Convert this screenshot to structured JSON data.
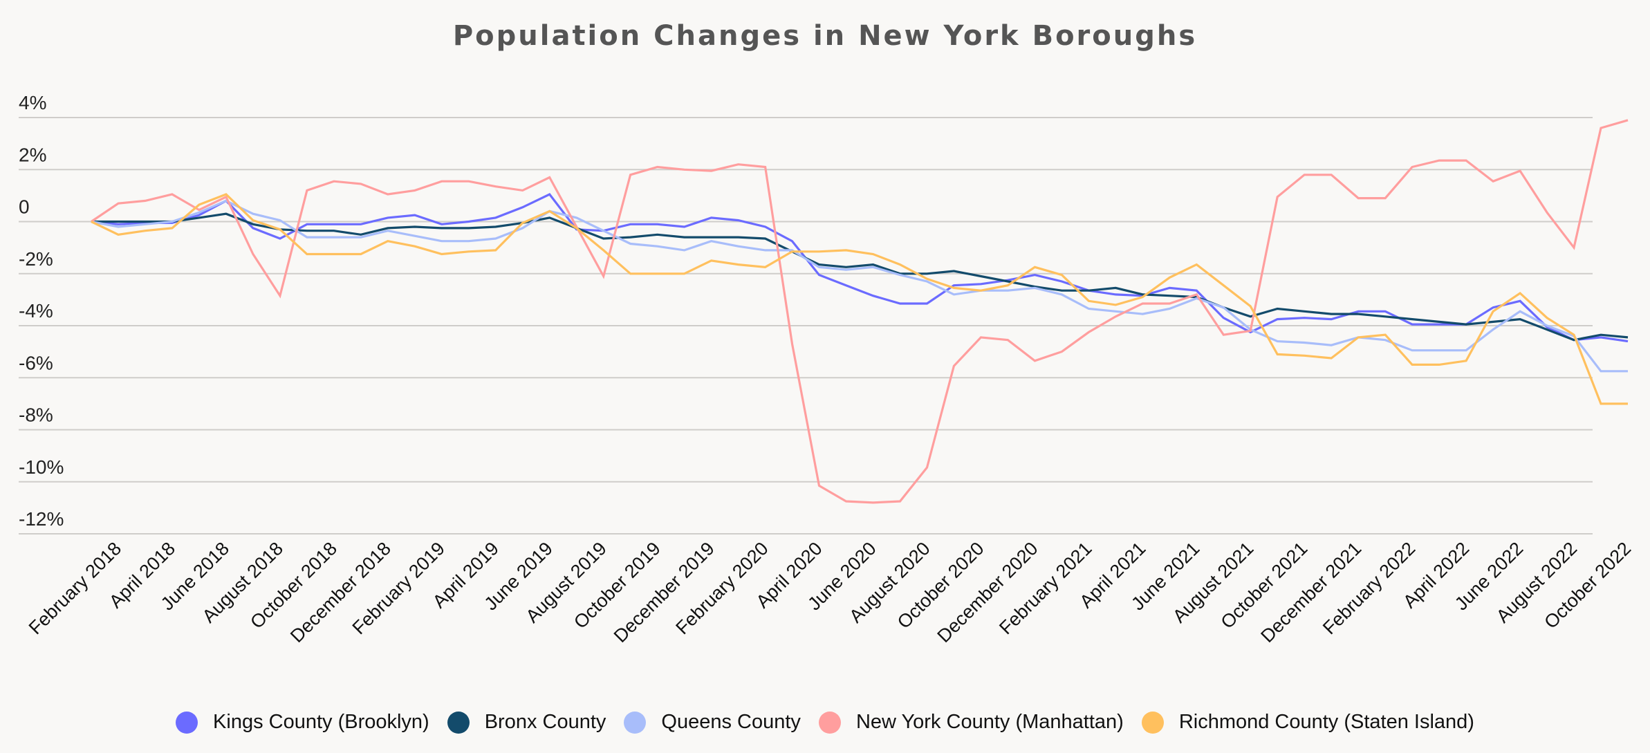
{
  "chart_data": {
    "type": "line",
    "title": "Population Changes in New York Boroughs",
    "xlabel": "",
    "ylabel": "",
    "x": [
      "2018-01",
      "2018-02",
      "2018-03",
      "2018-04",
      "2018-05",
      "2018-06",
      "2018-07",
      "2018-08",
      "2018-09",
      "2018-10",
      "2018-11",
      "2018-12",
      "2019-01",
      "2019-02",
      "2019-03",
      "2019-04",
      "2019-05",
      "2019-06",
      "2019-07",
      "2019-08",
      "2019-09",
      "2019-10",
      "2019-11",
      "2019-12",
      "2020-01",
      "2020-02",
      "2020-03",
      "2020-04",
      "2020-05",
      "2020-06",
      "2020-07",
      "2020-08",
      "2020-09",
      "2020-10",
      "2020-11",
      "2020-12",
      "2021-01",
      "2021-02",
      "2021-03",
      "2021-04",
      "2021-05",
      "2021-06",
      "2021-07",
      "2021-08",
      "2021-09",
      "2021-10",
      "2021-11",
      "2021-12",
      "2022-01",
      "2022-02",
      "2022-03",
      "2022-04",
      "2022-05",
      "2022-06",
      "2022-07",
      "2022-08",
      "2022-09",
      "2022-10"
    ],
    "x_tick_labels": [
      "February 2018",
      "April 2018",
      "June 2018",
      "August 2018",
      "October 2018",
      "December 2018",
      "February 2019",
      "April 2019",
      "June 2019",
      "August 2019",
      "October 2019",
      "December 2019",
      "February 2020",
      "April 2020",
      "June 2020",
      "August 2020",
      "October 2020",
      "December 2020",
      "February 2021",
      "April 2021",
      "June 2021",
      "August 2021",
      "October 2021",
      "December 2021",
      "February 2022",
      "April 2022",
      "June 2022",
      "August 2022",
      "October 2022"
    ],
    "y_ticks": [
      4,
      2,
      0,
      -2,
      -4,
      -6,
      -8,
      -10,
      -12
    ],
    "y_tick_labels": [
      "4%",
      "2%",
      "0",
      "-2%",
      "-4%",
      "-6%",
      "-8%",
      "-10%",
      "-12%"
    ],
    "ylim": [
      -12,
      4
    ],
    "grid": "horizontal",
    "legend_position": "bottom",
    "series": [
      {
        "name": "Kings County (Brooklyn)",
        "color": "#6b6bff",
        "values": [
          0,
          -0.1,
          -0.05,
          -0.05,
          0.25,
          0.8,
          -0.25,
          -0.65,
          -0.1,
          -0.1,
          -0.1,
          0.15,
          0.25,
          -0.1,
          0,
          0.15,
          0.55,
          1.05,
          -0.3,
          -0.35,
          -0.1,
          -0.1,
          -0.2,
          0.15,
          0.05,
          -0.2,
          -0.75,
          -2.05,
          -2.45,
          -2.85,
          -3.15,
          -3.15,
          -2.45,
          -2.4,
          -2.25,
          -2.05,
          -2.3,
          -2.65,
          -2.8,
          -2.85,
          -2.55,
          -2.65,
          -3.7,
          -4.25,
          -3.75,
          -3.7,
          -3.75,
          -3.45,
          -3.45,
          -3.95,
          -3.95,
          -3.95,
          -3.3,
          -3.05,
          -4.05,
          -4.55,
          -4.45,
          -4.6
        ]
      },
      {
        "name": "Bronx County",
        "color": "#134b6b",
        "values": [
          0,
          0,
          0,
          0,
          0.15,
          0.3,
          -0.1,
          -0.3,
          -0.35,
          -0.35,
          -0.5,
          -0.25,
          -0.2,
          -0.25,
          -0.25,
          -0.2,
          -0.05,
          0.15,
          -0.25,
          -0.65,
          -0.6,
          -0.5,
          -0.6,
          -0.6,
          -0.6,
          -0.65,
          -1.15,
          -1.65,
          -1.75,
          -1.65,
          -2.0,
          -2.0,
          -1.9,
          -2.1,
          -2.3,
          -2.5,
          -2.65,
          -2.65,
          -2.55,
          -2.8,
          -2.85,
          -2.9,
          -3.3,
          -3.65,
          -3.35,
          -3.45,
          -3.55,
          -3.55,
          -3.65,
          -3.75,
          -3.85,
          -3.95,
          -3.85,
          -3.75,
          -4.15,
          -4.55,
          -4.35,
          -4.45
        ]
      },
      {
        "name": "Queens County",
        "color": "#a8bdfa",
        "values": [
          0,
          -0.2,
          -0.1,
          0,
          0.35,
          0.8,
          0.3,
          0.05,
          -0.6,
          -0.6,
          -0.6,
          -0.35,
          -0.55,
          -0.75,
          -0.75,
          -0.65,
          -0.25,
          0.4,
          0.15,
          -0.35,
          -0.85,
          -0.95,
          -1.1,
          -0.75,
          -0.95,
          -1.1,
          -1.1,
          -1.75,
          -1.85,
          -1.75,
          -2.05,
          -2.3,
          -2.8,
          -2.65,
          -2.65,
          -2.55,
          -2.8,
          -3.35,
          -3.45,
          -3.55,
          -3.35,
          -2.95,
          -3.3,
          -4.15,
          -4.6,
          -4.65,
          -4.75,
          -4.45,
          -4.55,
          -4.95,
          -4.95,
          -4.95,
          -4.15,
          -3.45,
          -4.0,
          -4.4,
          -5.75,
          -5.75
        ]
      },
      {
        "name": "New York County (Manhattan)",
        "color": "#ff9e9e",
        "values": [
          0,
          0.7,
          0.8,
          1.05,
          0.45,
          0.95,
          -1.25,
          -2.85,
          1.2,
          1.55,
          1.45,
          1.05,
          1.2,
          1.55,
          1.55,
          1.35,
          1.2,
          1.7,
          -0.2,
          -2.1,
          1.8,
          2.1,
          2.0,
          1.95,
          2.2,
          2.1,
          -4.7,
          -10.15,
          -10.75,
          -10.8,
          -10.75,
          -9.45,
          -5.55,
          -4.45,
          -4.55,
          -5.35,
          -5.0,
          -4.25,
          -3.65,
          -3.15,
          -3.15,
          -2.8,
          -4.35,
          -4.2,
          0.95,
          1.8,
          1.8,
          0.9,
          0.9,
          2.1,
          2.35,
          2.35,
          1.55,
          1.95,
          0.35,
          -1.0,
          3.6,
          3.9
        ]
      },
      {
        "name": "Richmond County (Staten Island)",
        "color": "#ffc05e",
        "values": [
          0,
          -0.5,
          -0.35,
          -0.25,
          0.65,
          1.05,
          0.05,
          -0.3,
          -1.25,
          -1.25,
          -1.25,
          -0.75,
          -0.95,
          -1.25,
          -1.15,
          -1.1,
          -0.05,
          0.4,
          -0.25,
          -1.1,
          -2.0,
          -2.0,
          -2.0,
          -1.5,
          -1.65,
          -1.75,
          -1.15,
          -1.15,
          -1.1,
          -1.25,
          -1.65,
          -2.2,
          -2.55,
          -2.65,
          -2.45,
          -1.75,
          -2.05,
          -3.05,
          -3.2,
          -2.9,
          -2.15,
          -1.65,
          -2.45,
          -3.25,
          -5.1,
          -5.15,
          -5.25,
          -4.45,
          -4.35,
          -5.5,
          -5.5,
          -5.35,
          -3.45,
          -2.75,
          -3.7,
          -4.35,
          -7.0,
          -7.0
        ]
      }
    ]
  }
}
